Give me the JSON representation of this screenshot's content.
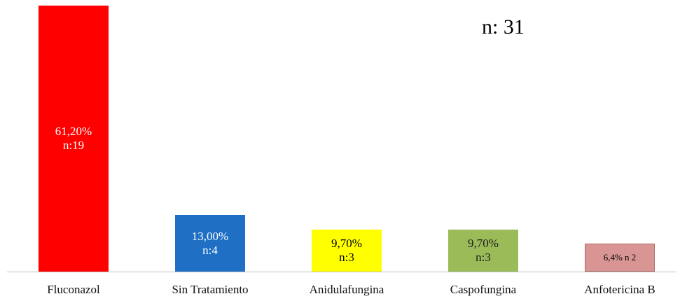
{
  "chart_data": {
    "type": "bar",
    "annotation": "n: 31",
    "categories": [
      "Fluconazol",
      "Sin Tratamiento",
      "Anidulafungina",
      "Caspofungina",
      "Anfotericina B"
    ],
    "values": [
      61.2,
      13.0,
      9.7,
      9.7,
      6.4
    ],
    "value_labels": [
      "61,20%\nn:19",
      "13,00%\nn:4",
      "9,70%\nn:3",
      "9,70%\nn:3",
      "6,4% n 2"
    ],
    "colors": [
      "#ff0000",
      "#1f6fc5",
      "#ffff00",
      "#9bbb59",
      "#d99594"
    ],
    "label_colors": [
      "#ffffff",
      "#ffffff",
      "#000000",
      "#1a1a1a",
      "#000000"
    ]
  }
}
